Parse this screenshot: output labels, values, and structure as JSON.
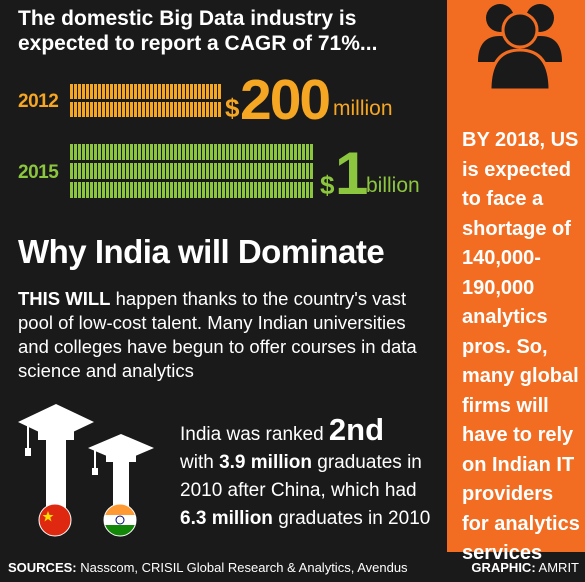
{
  "headline": "The domestic Big Data industry is expected to report a CAGR of 71%...",
  "rows": [
    {
      "year": "2012",
      "dollar": "$",
      "amount": "200",
      "unit": "million",
      "color": "#f5a623"
    },
    {
      "year": "2015",
      "dollar": "$",
      "amount": "1",
      "unit": "billion",
      "color": "#8cc63f"
    }
  ],
  "section_title": "Why India will Dominate",
  "body": {
    "lead": "THIS WILL",
    "text": " happen thanks to the country's vast pool of low-cost talent. Many Indian universities and colleges have begun to offer courses in data science and analytics"
  },
  "ranking": {
    "pre": "India was ranked ",
    "rank": "2nd",
    "mid1": "with ",
    "india_grads": "3.9 million",
    "mid2": " graduates in 2010 after China, which had ",
    "china_grads": "6.3 million",
    "post": " graduates in 2010"
  },
  "sidebar": {
    "text": "BY 2018, US is expected to face a shortage of 140,000-190,000 analytics pros. So, many global firms will have to rely on Indian IT providers for analytics services",
    "icon": "people-group-icon",
    "background": "#f26d21"
  },
  "footer": {
    "sources_label": "SOURCES:",
    "sources_text": " Nasscom, CRISIL Global Research & Analytics, Avendus",
    "graphic_label": "GRAPHIC:",
    "graphic_text": " AMRIT"
  },
  "icons": [
    "graduation-cap-china-icon",
    "graduation-cap-india-icon",
    "china-flag-icon",
    "india-flag-icon"
  ]
}
